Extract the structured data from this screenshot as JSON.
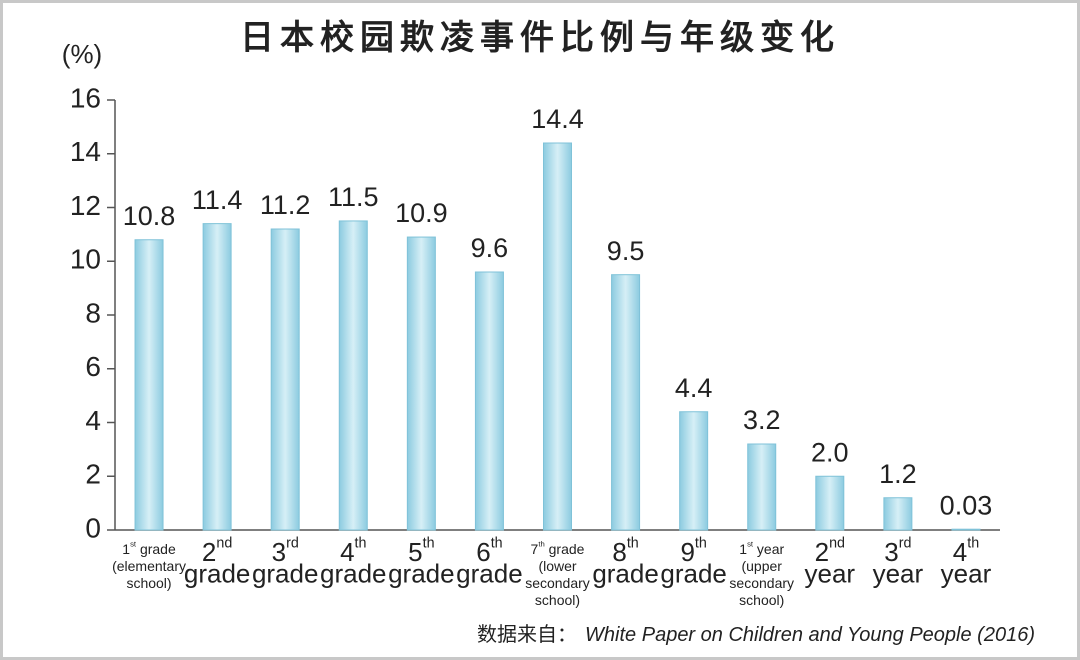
{
  "chart_data": {
    "type": "bar",
    "title": "日本校园欺凌事件比例与年级变化",
    "y_label": "(%)",
    "categories": [
      "1st grade (elementary school)",
      "2nd grade",
      "3rd grade",
      "4th grade",
      "5th grade",
      "6th grade",
      "7th grade (lower secondary school)",
      "8th grade",
      "9th grade",
      "1st year (upper secondary school)",
      "2nd year",
      "3rd year",
      "4th year"
    ],
    "values": [
      10.8,
      11.4,
      11.2,
      11.5,
      10.9,
      9.6,
      14.4,
      9.5,
      4.4,
      3.2,
      2,
      1.2,
      0.03
    ],
    "value_labels": [
      "10.8",
      "11.4",
      "11.2",
      "11.5",
      "10.9",
      "9.6",
      "14.4",
      "9.5",
      "4.4",
      "3.2",
      "2.0",
      "1.2",
      "0.03"
    ],
    "color": "#aedcea",
    "ylim": [
      0,
      16
    ],
    "yticks": [
      0,
      2,
      4,
      6,
      8,
      10,
      12,
      14,
      16
    ],
    "source": {
      "prefix": "数据来自：",
      "text": "White Paper on Children and Young People (2016)"
    }
  }
}
